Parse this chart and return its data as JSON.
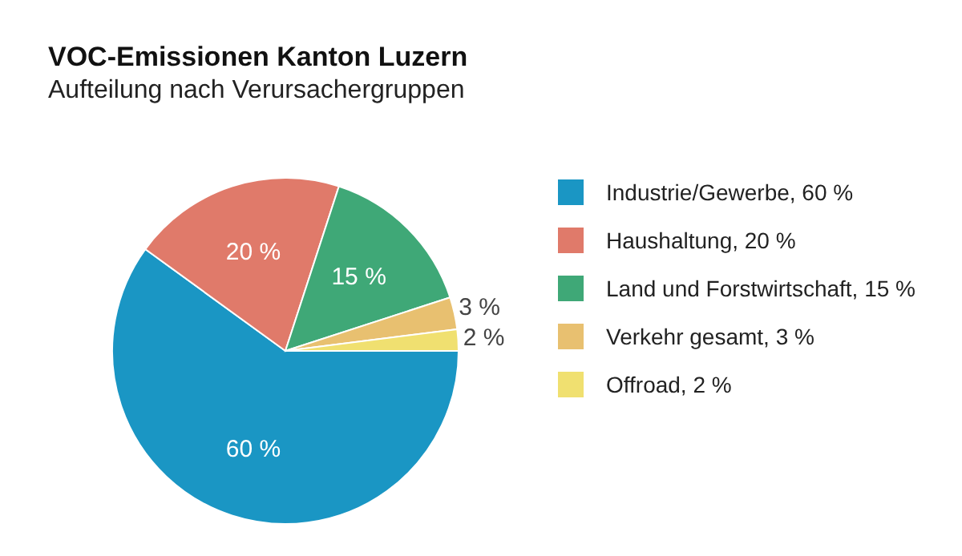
{
  "chart_data": {
    "type": "pie",
    "title": "VOC-Emissionen Kanton Luzern",
    "subtitle": "Aufteilung nach Verursachergruppen",
    "categories": [
      "Industrie/Gewerbe, 60 %",
      "Haushaltung, 20 %",
      "Land und Forstwirtschaft, 15 %",
      "Verkehr gesamt, 3 %",
      "Offroad, 2 %"
    ],
    "values": [
      60,
      20,
      15,
      3,
      2
    ],
    "value_labels": [
      "60 %",
      "20 %",
      "15 %",
      "3 %",
      "2 %"
    ],
    "colors": [
      "#1a96c4",
      "#e07a6a",
      "#3fa877",
      "#e8c070",
      "#f0e070"
    ],
    "legend": "right"
  }
}
